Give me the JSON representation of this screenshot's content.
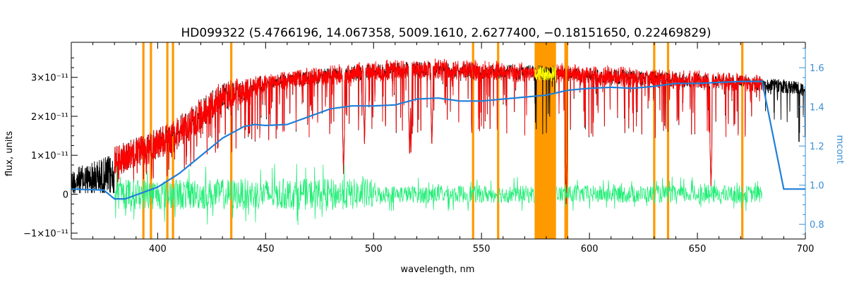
{
  "chart_data": {
    "type": "line",
    "title": "HD099322    (5.4766196, 14.067358, 5009.1610, 2.6277400, −0.18151650, 0.22469829)",
    "xlabel": "wavelength, nm",
    "ylabel": "flux, units",
    "y2label": "mcont",
    "xlim": [
      360,
      700
    ],
    "ylim": [
      -1.15e-11,
      3.9e-11
    ],
    "y2lim": [
      0.725,
      1.73
    ],
    "grid": false,
    "x_ticks": [
      400,
      450,
      500,
      550,
      600,
      650,
      700
    ],
    "x_tick_labels": [
      "400",
      "450",
      "500",
      "550",
      "600",
      "650",
      "700"
    ],
    "y_ticks": [
      -1e-11,
      0,
      1e-11,
      2e-11,
      3e-11
    ],
    "y_tick_labels": [
      "−1×10⁻¹¹",
      "0",
      "1×10⁻¹¹",
      "2×10⁻¹¹",
      "3×10⁻¹¹"
    ],
    "y2_ticks": [
      0.8,
      1.0,
      1.2,
      1.4,
      1.6
    ],
    "y2_tick_labels": [
      "0.8",
      "1.0",
      "1.2",
      "1.4",
      "1.6"
    ],
    "colors": {
      "observed": "#000000",
      "model": "#ff0000",
      "residual": "#22ee77",
      "continuum": "#1f7fd8",
      "masked_band": "#ff9900",
      "masked_flux": "#ffff00",
      "right_axis": "#3a8fd6"
    },
    "masked_lines_nm": [
      393.4,
      396.9,
      404.5,
      407.1,
      434.1,
      546.1,
      557.7,
      588.9,
      589.6,
      630.0,
      636.4,
      670.8
    ],
    "masked_band_nm": [
      574.6,
      584.5
    ],
    "series": [
      {
        "role": "observed",
        "envelope_x": [
          360,
          376,
          380,
          385,
          390,
          395,
          400,
          405,
          410,
          415,
          420,
          425,
          430,
          435,
          440,
          445,
          450,
          460,
          470,
          480,
          490,
          500,
          510,
          520,
          530,
          540,
          550,
          560,
          570,
          580,
          590,
          600,
          610,
          620,
          630,
          640,
          650,
          660,
          670,
          680,
          690,
          700
        ],
        "envelope_y": [
          7.5e-12,
          1.15e-11,
          1.2e-11,
          1.35e-11,
          1.45e-11,
          1.55e-11,
          1.7e-11,
          1.8e-11,
          2e-11,
          2.2e-11,
          2.45e-11,
          2.65e-11,
          2.85e-11,
          2.9e-11,
          2.95e-11,
          3e-11,
          3.05e-11,
          3.1e-11,
          3.2e-11,
          3.25e-11,
          3.3e-11,
          3.35e-11,
          3.38e-11,
          3.4e-11,
          3.4e-11,
          3.38e-11,
          3.36e-11,
          3.34e-11,
          3.32e-11,
          3.3e-11,
          3.28e-11,
          3.25e-11,
          3.22e-11,
          3.18e-11,
          3.15e-11,
          3.12e-11,
          3.1e-11,
          3.08e-11,
          3.05e-11,
          3e-11,
          2.95e-11,
          2.85e-11
        ]
      },
      {
        "role": "model",
        "x_range": [
          380,
          680
        ]
      },
      {
        "role": "residual",
        "x_range": [
          380,
          680
        ]
      },
      {
        "role": "continuum",
        "axis": "right",
        "x": [
          360,
          375,
          380,
          385,
          390,
          400,
          410,
          420,
          430,
          440,
          445,
          450,
          460,
          470,
          480,
          490,
          500,
          510,
          520,
          530,
          540,
          550,
          560,
          570,
          580,
          590,
          600,
          610,
          620,
          630,
          640,
          650,
          660,
          670,
          680,
          690,
          700
        ],
        "y": [
          0.98,
          0.975,
          0.93,
          0.93,
          0.95,
          0.99,
          1.06,
          1.15,
          1.24,
          1.3,
          1.31,
          1.305,
          1.31,
          1.35,
          1.39,
          1.405,
          1.405,
          1.41,
          1.44,
          1.445,
          1.43,
          1.43,
          1.44,
          1.45,
          1.46,
          1.485,
          1.495,
          1.5,
          1.495,
          1.505,
          1.52,
          1.52,
          1.525,
          1.53,
          1.53,
          0.98,
          0.98
        ]
      }
    ]
  }
}
